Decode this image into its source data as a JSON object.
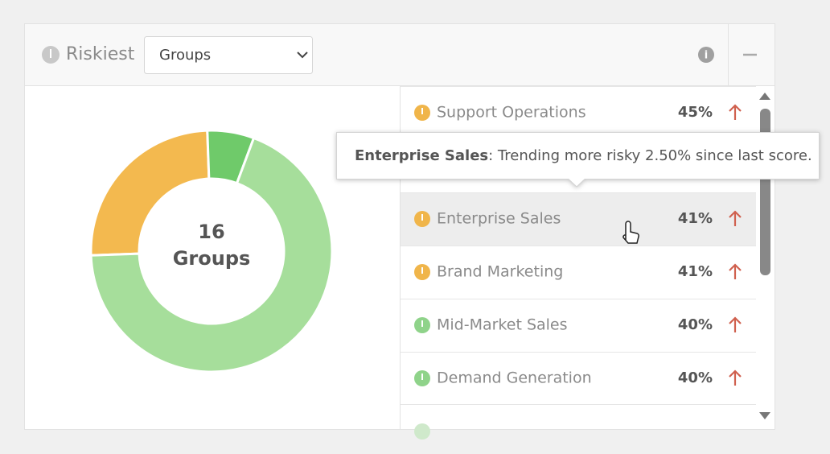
{
  "header": {
    "title": "Riskiest",
    "select": "Groups"
  },
  "donut": {
    "center_value": "16",
    "center_label": "Groups",
    "segments": [
      {
        "value": 4,
        "color": "#f3b94f"
      },
      {
        "value": 1,
        "color": "#6fca6a"
      },
      {
        "value": 11,
        "color": "#a6de9b"
      }
    ]
  },
  "list": [
    {
      "name": "Support Operations",
      "value": "45%",
      "icon_color": "#f0b54a"
    },
    {
      "name": "Enterprise Sales",
      "value": "41%",
      "icon_color": "#f0b54a"
    },
    {
      "name": "Brand Marketing",
      "value": "41%",
      "icon_color": "#f0b54a"
    },
    {
      "name": "Mid-Market Sales",
      "value": "40%",
      "icon_color": "#8fd38a"
    },
    {
      "name": "Demand Generation",
      "value": "40%",
      "icon_color": "#8fd38a"
    }
  ],
  "tooltip": {
    "title": "Enterprise Sales",
    "text": ": Trending more risky 2.50% since last score."
  }
}
